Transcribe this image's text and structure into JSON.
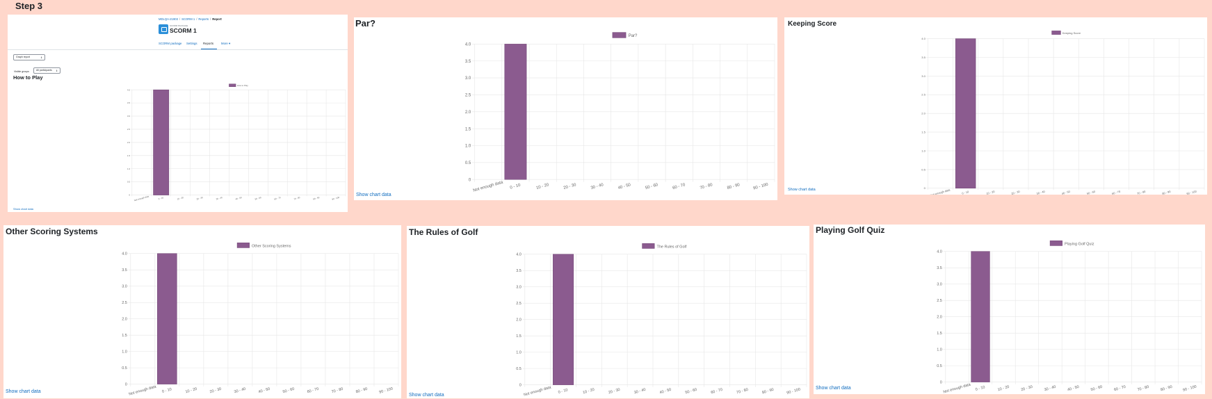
{
  "step_title": "Step 3",
  "report_page": {
    "breadcrumb": [
      "MDLQA-21903",
      "SCORM 1",
      "Reports",
      "Report"
    ],
    "module_type": "SCORM PACKAGE",
    "module_name": "SCORM 1",
    "tabs": [
      "SCORM package",
      "Settings",
      "Reports",
      "More"
    ],
    "active_tab": "Reports",
    "report_select": "Graph report",
    "visible_groups_label": "Visible groups",
    "visible_groups_value": "All participants"
  },
  "show_chart_data_label": "Show chart data",
  "colors": {
    "bar": "#8b5b8f",
    "link": "#0f6cbf",
    "background": "#ffd7cb"
  },
  "chart_data": [
    {
      "type": "bar",
      "title": "How to Play",
      "categories": [
        "Not enough data",
        "0 - 10",
        "10 - 20",
        "20 - 30",
        "30 - 40",
        "40 - 50",
        "50 - 60",
        "60 - 70",
        "70 - 80",
        "80 - 90",
        "90 - 100"
      ],
      "series": [
        {
          "name": "How to Play",
          "values": [
            0,
            4,
            0,
            0,
            0,
            0,
            0,
            0,
            0,
            0,
            0
          ]
        }
      ],
      "ylim": [
        0,
        4
      ],
      "yticks": [
        "0",
        "0.5",
        "1.0",
        "1.5",
        "2.0",
        "2.5",
        "3.0",
        "3.5",
        "4.0"
      ],
      "legend": "top",
      "grid": true
    },
    {
      "type": "bar",
      "title": "Par?",
      "categories": [
        "Not enough data",
        "0 - 10",
        "10 - 20",
        "20 - 30",
        "30 - 40",
        "40 - 50",
        "50 - 60",
        "60 - 70",
        "70 - 80",
        "80 - 90",
        "90 - 100"
      ],
      "series": [
        {
          "name": "Par?",
          "values": [
            0,
            4,
            0,
            0,
            0,
            0,
            0,
            0,
            0,
            0,
            0
          ]
        }
      ],
      "ylim": [
        0,
        4
      ],
      "yticks": [
        "0",
        "0.5",
        "1.0",
        "1.5",
        "2.0",
        "2.5",
        "3.0",
        "3.5",
        "4.0"
      ],
      "legend": "top",
      "grid": true
    },
    {
      "type": "bar",
      "title": "Keeping Score",
      "categories": [
        "Not enough data",
        "0 - 10",
        "10 - 20",
        "20 - 30",
        "30 - 40",
        "40 - 50",
        "50 - 60",
        "60 - 70",
        "70 - 80",
        "80 - 90",
        "90 - 100"
      ],
      "series": [
        {
          "name": "Keeping Score",
          "values": [
            0,
            4,
            0,
            0,
            0,
            0,
            0,
            0,
            0,
            0,
            0
          ]
        }
      ],
      "ylim": [
        0,
        4
      ],
      "yticks": [
        "0",
        "0.5",
        "1.0",
        "1.5",
        "2.0",
        "2.5",
        "3.0",
        "3.5",
        "4.0"
      ],
      "legend": "top",
      "grid": true
    },
    {
      "type": "bar",
      "title": "Other Scoring Systems",
      "categories": [
        "Not enough data",
        "0 - 10",
        "10 - 20",
        "20 - 30",
        "30 - 40",
        "40 - 50",
        "50 - 60",
        "60 - 70",
        "70 - 80",
        "80 - 90",
        "90 - 100"
      ],
      "series": [
        {
          "name": "Other Scoring Systems",
          "values": [
            0,
            4,
            0,
            0,
            0,
            0,
            0,
            0,
            0,
            0,
            0
          ]
        }
      ],
      "ylim": [
        0,
        4
      ],
      "yticks": [
        "0",
        "0.5",
        "1.0",
        "1.5",
        "2.0",
        "2.5",
        "3.0",
        "3.5",
        "4.0"
      ],
      "legend": "top",
      "grid": true
    },
    {
      "type": "bar",
      "title": "The Rules of Golf",
      "categories": [
        "Not enough data",
        "0 - 10",
        "10 - 20",
        "20 - 30",
        "30 - 40",
        "40 - 50",
        "50 - 60",
        "60 - 70",
        "70 - 80",
        "80 - 90",
        "90 - 100"
      ],
      "series": [
        {
          "name": "The Rules of Golf",
          "values": [
            0,
            4,
            0,
            0,
            0,
            0,
            0,
            0,
            0,
            0,
            0
          ]
        }
      ],
      "ylim": [
        0,
        4
      ],
      "yticks": [
        "0",
        "0.5",
        "1.0",
        "1.5",
        "2.0",
        "2.5",
        "3.0",
        "3.5",
        "4.0"
      ],
      "legend": "top",
      "grid": true
    },
    {
      "type": "bar",
      "title": "Playing Golf Quiz",
      "categories": [
        "Not enough data",
        "0 - 10",
        "10 - 20",
        "20 - 30",
        "30 - 40",
        "40 - 50",
        "50 - 60",
        "60 - 70",
        "70 - 80",
        "80 - 90",
        "90 - 100"
      ],
      "series": [
        {
          "name": "Playing Golf Quiz",
          "values": [
            0,
            4,
            0,
            0,
            0,
            0,
            0,
            0,
            0,
            0,
            0
          ]
        }
      ],
      "ylim": [
        0,
        4
      ],
      "yticks": [
        "0",
        "0.5",
        "1.0",
        "1.5",
        "2.0",
        "2.5",
        "3.0",
        "3.5",
        "4.0"
      ],
      "legend": "top",
      "grid": true
    }
  ]
}
